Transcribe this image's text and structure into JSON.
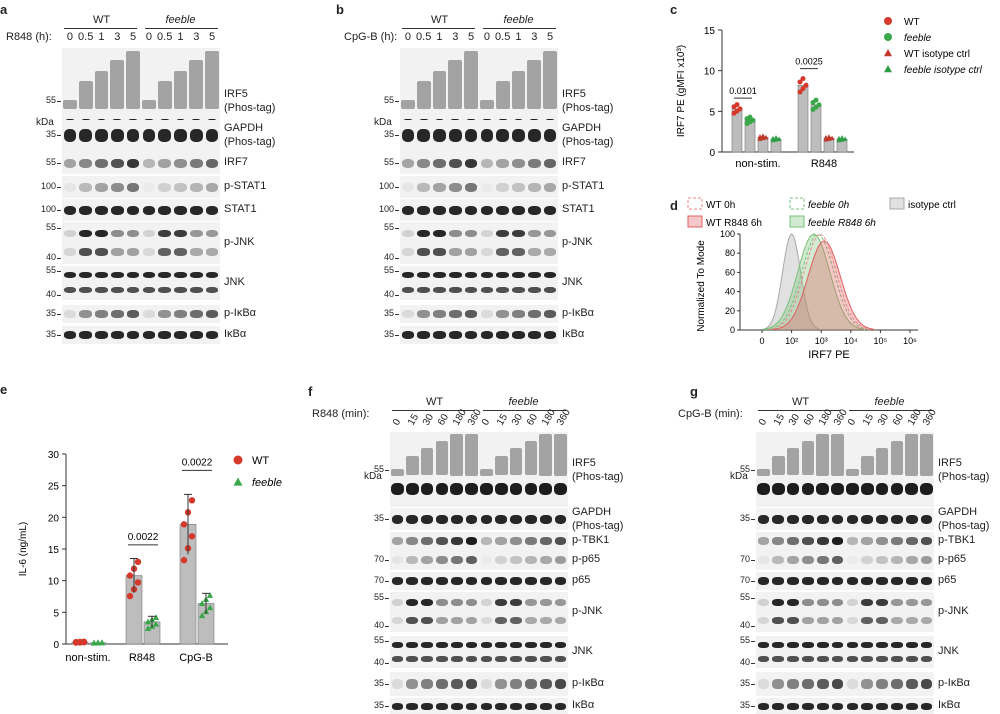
{
  "panels": {
    "a": {
      "letter": "a",
      "stim_label": "R848 (h):",
      "group_wt": "WT",
      "group_mut": "feeble",
      "lanes": [
        "0",
        "0.5",
        "1",
        "3",
        "5",
        "0",
        "0.5",
        "1",
        "3",
        "5"
      ],
      "kda": "kDa",
      "blots": [
        {
          "label1": "IRF5",
          "label2": "(Phos-tag)",
          "mw": [
            "55"
          ]
        },
        {
          "label1": "GAPDH",
          "label2": "(Phos-tag)",
          "mw": [
            "35"
          ]
        },
        {
          "label1": "IRF7",
          "label2": "",
          "mw": [
            "55"
          ]
        },
        {
          "label1": "p-STAT1",
          "label2": "",
          "mw": [
            "100"
          ]
        },
        {
          "label1": "STAT1",
          "label2": "",
          "mw": [
            "100"
          ]
        },
        {
          "label1": "p-JNK",
          "label2": "",
          "mw": [
            "55",
            "40"
          ]
        },
        {
          "label1": "JNK",
          "label2": "",
          "mw": [
            "55",
            "40"
          ]
        },
        {
          "label1": "p-IκBα",
          "label2": "",
          "mw": [
            "35"
          ]
        },
        {
          "label1": "IκBα",
          "label2": "",
          "mw": [
            "35"
          ]
        }
      ]
    },
    "b": {
      "letter": "b",
      "stim_label": "CpG-B (h):",
      "group_wt": "WT",
      "group_mut": "feeble",
      "lanes": [
        "0",
        "0.5",
        "1",
        "3",
        "5",
        "0",
        "0.5",
        "1",
        "3",
        "5"
      ],
      "kda": "kDa",
      "blots": [
        {
          "label1": "IRF5",
          "label2": "(Phos-tag)",
          "mw": [
            "55"
          ]
        },
        {
          "label1": "GAPDH",
          "label2": "(Phos-tag)",
          "mw": [
            "35"
          ]
        },
        {
          "label1": "IRF7",
          "label2": "",
          "mw": [
            "55"
          ]
        },
        {
          "label1": "p-STAT1",
          "label2": "",
          "mw": [
            "100"
          ]
        },
        {
          "label1": "STAT1",
          "label2": "",
          "mw": [
            "100"
          ]
        },
        {
          "label1": "p-JNK",
          "label2": "",
          "mw": [
            "55",
            "40"
          ]
        },
        {
          "label1": "JNK",
          "label2": "",
          "mw": [
            "55",
            "40"
          ]
        },
        {
          "label1": "p-IκBα",
          "label2": "",
          "mw": [
            "35"
          ]
        },
        {
          "label1": "IκBα",
          "label2": "",
          "mw": [
            "35"
          ]
        }
      ]
    },
    "f": {
      "letter": "f",
      "stim_label": "R848 (min):",
      "group_wt": "WT",
      "group_mut": "feeble",
      "lanes": [
        "0",
        "15",
        "30",
        "60",
        "180",
        "360",
        "0",
        "15",
        "30",
        "60",
        "180",
        "360"
      ],
      "kda": "kDa",
      "blots": [
        {
          "label1": "IRF5",
          "label2": "(Phos-tag)",
          "mw": [
            "55"
          ]
        },
        {
          "label1": "GAPDH",
          "label2": "(Phos-tag)",
          "mw": [
            "35"
          ]
        },
        {
          "label1": "p-TBK1",
          "label2": "",
          "mw": []
        },
        {
          "label1": "p-p65",
          "label2": "",
          "mw": [
            "70"
          ]
        },
        {
          "label1": "p65",
          "label2": "",
          "mw": [
            "70"
          ]
        },
        {
          "label1": "p-JNK",
          "label2": "",
          "mw": [
            "55",
            "40"
          ]
        },
        {
          "label1": "JNK",
          "label2": "",
          "mw": [
            "55",
            "40"
          ]
        },
        {
          "label1": "p-IκBα",
          "label2": "",
          "mw": [
            "35"
          ]
        },
        {
          "label1": "IκBα",
          "label2": "",
          "mw": [
            "35"
          ]
        }
      ]
    },
    "g": {
      "letter": "g",
      "stim_label": "CpG-B (min):",
      "group_wt": "WT",
      "group_mut": "feeble",
      "lanes": [
        "0",
        "15",
        "30",
        "60",
        "180",
        "360",
        "0",
        "15",
        "30",
        "60",
        "180",
        "360"
      ],
      "kda": "kDa",
      "blots": [
        {
          "label1": "IRF5",
          "label2": "(Phos-tag)",
          "mw": [
            "55"
          ]
        },
        {
          "label1": "GAPDH",
          "label2": "(Phos-tag)",
          "mw": [
            "35"
          ]
        },
        {
          "label1": "p-TBK1",
          "label2": "",
          "mw": []
        },
        {
          "label1": "p-p65",
          "label2": "",
          "mw": [
            "70"
          ]
        },
        {
          "label1": "p65",
          "label2": "",
          "mw": [
            "70"
          ]
        },
        {
          "label1": "p-JNK",
          "label2": "",
          "mw": [
            "55",
            "40"
          ]
        },
        {
          "label1": "JNK",
          "label2": "",
          "mw": [
            "55",
            "40"
          ]
        },
        {
          "label1": "p-IκBα",
          "label2": "",
          "mw": [
            "35"
          ]
        },
        {
          "label1": "IκBα",
          "label2": "",
          "mw": [
            "35"
          ]
        }
      ]
    }
  },
  "chart_data": [
    {
      "panel": "c",
      "type": "bar",
      "ylabel": "IRF7 PE (gMFI x10³)",
      "categories": [
        "non-stim.",
        "R848"
      ],
      "ylim": [
        0,
        15
      ],
      "yticks": [
        0,
        5,
        10,
        15
      ],
      "series": [
        {
          "name": "WT",
          "color": "#d4392b",
          "marker": "circle",
          "values": [
            5.3,
            8.2
          ]
        },
        {
          "name": "feeble",
          "color": "#3aa84a",
          "marker": "circle",
          "values": [
            3.9,
            5.8
          ]
        },
        {
          "name": "WT isotype ctrl",
          "color": "#c0392b",
          "marker": "triangle",
          "values": [
            1.8,
            1.7
          ]
        },
        {
          "name": "feeble isotype ctrl",
          "color": "#2e9e44",
          "marker": "triangle",
          "values": [
            1.6,
            1.6
          ]
        }
      ],
      "pvalues": [
        {
          "category": "non-stim.",
          "text": "0.0101"
        },
        {
          "category": "R848",
          "text": "0.0025"
        }
      ]
    },
    {
      "panel": "d",
      "type": "area",
      "xlabel": "IRF7 PE",
      "ylabel": "Normalized To Mode",
      "ylim": [
        0,
        100
      ],
      "yticks": [
        0,
        20,
        40,
        60,
        80,
        100
      ],
      "xticks": [
        "0",
        "10²",
        "10³",
        "10⁴",
        "10⁵",
        "10⁶"
      ],
      "series": [
        {
          "name": "WT 0h",
          "color": "#e88a8a",
          "style": "dashed",
          "peak_x": "10⁴"
        },
        {
          "name": "WT R848 6h",
          "color": "#e06060",
          "style": "filled",
          "peak_x": "10⁴"
        },
        {
          "name": "feeble 0h",
          "color": "#7ac27a",
          "style": "dashed",
          "peak_x": "10³"
        },
        {
          "name": "feeble R848 6h",
          "color": "#7ac27a",
          "style": "filled",
          "peak_x": "10³"
        },
        {
          "name": "isotype ctrl",
          "color": "#a9a9a9",
          "style": "filled",
          "peak_x": "10²"
        }
      ]
    },
    {
      "panel": "e",
      "type": "bar",
      "ylabel": "IL-6 (ng/mL)",
      "categories": [
        "non-stim.",
        "R848",
        "CpG-B"
      ],
      "ylim": [
        0,
        30
      ],
      "yticks": [
        0,
        5,
        10,
        15,
        20,
        25,
        30
      ],
      "series": [
        {
          "name": "WT",
          "color": "#d4392b",
          "marker": "circle",
          "values": [
            0.3,
            10.8,
            18.9
          ]
        },
        {
          "name": "feeble",
          "color": "#3aa84a",
          "marker": "triangle",
          "values": [
            0.2,
            3.5,
            6.4
          ]
        }
      ],
      "pvalues": [
        {
          "category": "R848",
          "text": "0.0022"
        },
        {
          "category": "CpG-B",
          "text": "0.0022"
        }
      ]
    }
  ],
  "panel_letters": {
    "c": "c",
    "d": "d",
    "e": "e"
  }
}
